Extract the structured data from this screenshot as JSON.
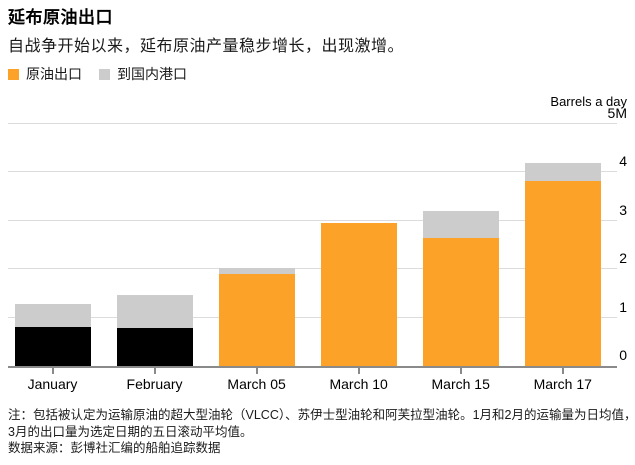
{
  "header": {
    "title": "延布原油出口",
    "subtitle": "自战争开始以来，延布原油产量稳步增长，出现激增。"
  },
  "legend": {
    "items": [
      {
        "label": "原油出口",
        "color": "#fca228"
      },
      {
        "label": "到国内港口",
        "color": "#cccccc"
      }
    ]
  },
  "axis": {
    "unit_label": "Barrels a day",
    "y_ticks": [
      {
        "label": "5M",
        "value": 5
      },
      {
        "label": "4",
        "value": 4
      },
      {
        "label": "3",
        "value": 3
      },
      {
        "label": "2",
        "value": 2
      },
      {
        "label": "1",
        "value": 1
      },
      {
        "label": "0",
        "value": 0
      }
    ]
  },
  "chart_data": {
    "type": "bar",
    "stacked": true,
    "title": "延布原油出口",
    "ylabel": "Barrels a day",
    "ylim": [
      0,
      5
    ],
    "grid": "horizontal",
    "legend_position": "top-left",
    "categories": [
      "January",
      "February",
      "March 05",
      "March 10",
      "March 15",
      "March 17"
    ],
    "series": [
      {
        "name": "原油出口",
        "values": [
          0.8,
          0.78,
          1.9,
          2.95,
          2.65,
          3.82
        ],
        "color": "#fca228",
        "bar_colors": [
          "#000000",
          "#000000",
          "#fca228",
          "#fca228",
          "#fca228",
          "#fca228"
        ]
      },
      {
        "name": "到国内港口",
        "values": [
          0.48,
          0.68,
          0.13,
          0,
          0.55,
          0.37
        ],
        "color": "#cccccc"
      }
    ],
    "note": "1月和2月为日均值；3月为五日滚动平均值"
  },
  "footnote": {
    "note_lines": [
      "注：包括被认定为运输原油的超大型油轮（VLCC）、苏伊士型油轮和阿芙拉型油轮。1月和2月的运输量为日均值，而",
      "3月的出口量为选定日期的五日滚动平均值。"
    ],
    "source": "数据来源：彭博社汇编的船舶追踪数据"
  },
  "colors": {
    "orange": "#fca228",
    "gray": "#cccccc",
    "black_bar": "#000000",
    "gridline": "#dcdcdc",
    "axis_line": "#8a8a8a"
  }
}
